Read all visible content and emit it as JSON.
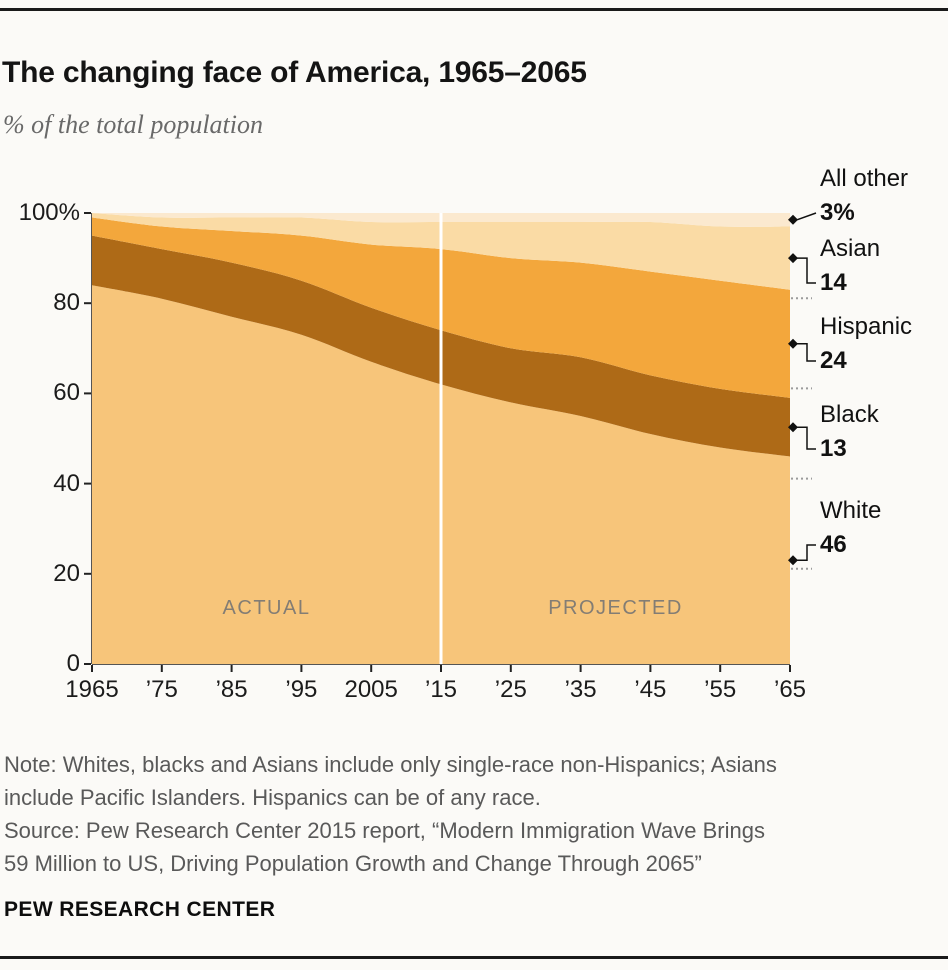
{
  "header": {
    "title": "The changing face of America, 1965–2065",
    "subtitle": "% of the total population"
  },
  "chart_data": {
    "type": "area",
    "stacked": true,
    "title": "The changing face of America, 1965–2065",
    "subtitle": "% of the total population",
    "x": [
      1965,
      1975,
      1985,
      1995,
      2005,
      2015,
      2025,
      2035,
      2045,
      2055,
      2065
    ],
    "x_tick_labels": [
      "1965",
      "’75",
      "’85",
      "’95",
      "2005",
      "’15",
      "’25",
      "’35",
      "’45",
      "’55",
      "’65"
    ],
    "y_ticks": [
      0,
      20,
      40,
      60,
      80,
      100
    ],
    "y_tick_labels": [
      "0",
      "20",
      "40",
      "60",
      "80",
      "100%"
    ],
    "ylim": [
      0,
      100
    ],
    "divider_year": 2015,
    "annotations": [
      "ACTUAL",
      "PROJECTED"
    ],
    "series": [
      {
        "name": "White",
        "end_label": "46",
        "color": "#F7C57A",
        "values": [
          84,
          81,
          77,
          73,
          67,
          62,
          58,
          55,
          51,
          48,
          46
        ]
      },
      {
        "name": "Black",
        "end_label": "13",
        "color": "#AE6A17",
        "values": [
          11,
          11,
          12,
          12,
          12,
          12,
          12,
          13,
          13,
          13,
          13
        ]
      },
      {
        "name": "Hispanic",
        "end_label": "24",
        "color": "#F3A73C",
        "values": [
          4,
          5,
          7,
          10,
          14,
          18,
          20,
          21,
          23,
          24,
          24
        ]
      },
      {
        "name": "Asian",
        "end_label": "14",
        "color": "#FADBA5",
        "values": [
          1,
          2,
          3,
          4,
          5,
          6,
          8,
          9,
          11,
          12,
          14
        ]
      },
      {
        "name": "All other",
        "end_label": "3%",
        "color": "#FBE9CF",
        "values": [
          0,
          1,
          1,
          1,
          2,
          2,
          2,
          2,
          2,
          3,
          3
        ]
      }
    ]
  },
  "footer": {
    "note_lines": [
      "Note: Whites, blacks and Asians include only single-race non-Hispanics; Asians",
      "include Pacific Islanders. Hispanics can be of any race."
    ],
    "source_lines": [
      "Source:  Pew Research Center 2015 report, “Modern Immigration Wave Brings",
      "59 Million to US, Driving Population Growth and Change Through 2065”"
    ],
    "brand": "PEW RESEARCH CENTER"
  }
}
